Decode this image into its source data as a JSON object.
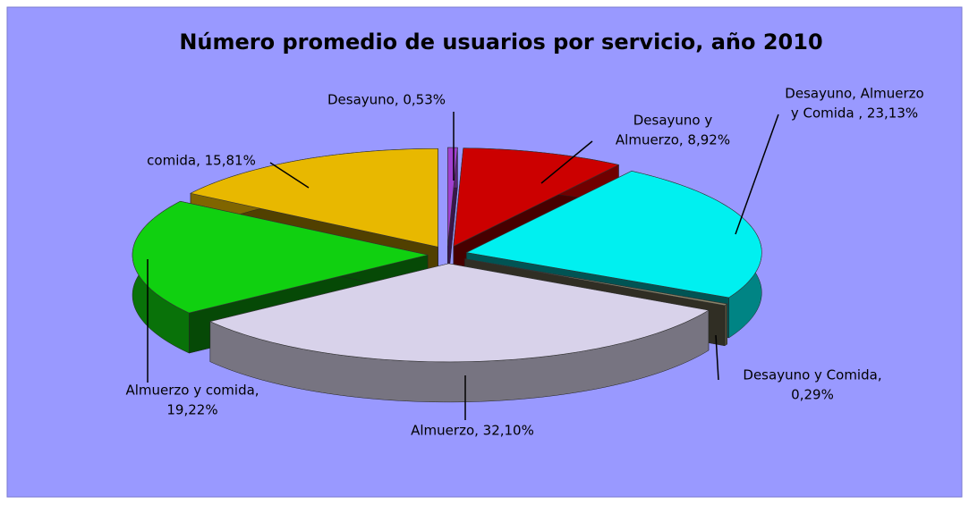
{
  "chart_data": {
    "type": "pie3d",
    "title": "Número promedio de usuarios por servicio, año 2010",
    "values": [
      0.53,
      8.92,
      23.13,
      0.29,
      32.1,
      19.22,
      15.81
    ],
    "value_labels": [
      [
        "Desayuno, 0,53%"
      ],
      [
        "Desayuno y",
        "Almuerzo, 8,92%"
      ],
      [
        "Desayuno, Almuerzo",
        "y Comida , 23,13%"
      ],
      [
        "Desayuno y Comida,",
        "0,29%"
      ],
      [
        "Almuerzo, 32,10%"
      ],
      [
        "Almuerzo y comida,",
        "19,22%"
      ],
      [
        "comida, 15,81%"
      ]
    ],
    "colors": [
      "#a040d0",
      "#cc0000",
      "#00f0f0",
      "#8a8468",
      "#d8d2ea",
      "#10d010",
      "#e8b800"
    ]
  }
}
